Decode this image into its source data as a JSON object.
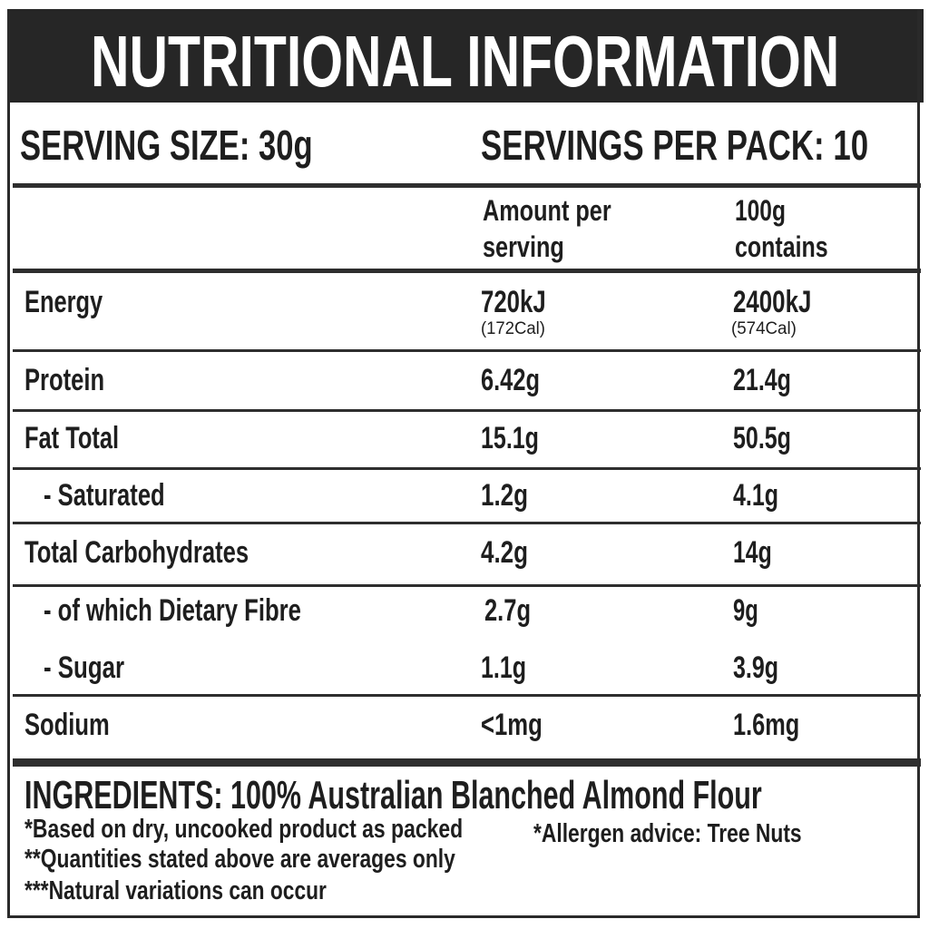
{
  "title": "NUTRITIONAL INFORMATION",
  "serving_size": "SERVING SIZE: 30g",
  "servings_per_pack": "SERVINGS PER PACK: 10",
  "columns": {
    "per_serving": [
      "Amount per",
      "serving"
    ],
    "per_100g": [
      "100g",
      "contains"
    ]
  },
  "rows": [
    {
      "label": "Energy",
      "serving": "720kJ",
      "serving_sub": "(172Cal)",
      "per100": "2400kJ",
      "per100_sub": "(574Cal)"
    },
    {
      "label": "Protein",
      "serving": "6.42g",
      "per100": "21.4g"
    },
    {
      "label": "Fat Total",
      "serving": "15.1g",
      "per100": "50.5g"
    },
    {
      "label": "- Saturated",
      "serving": "1.2g",
      "per100": "4.1g"
    },
    {
      "label": "Total Carbohydrates",
      "serving": "4.2g",
      "per100": "14g"
    },
    {
      "label": "- of which Dietary Fibre",
      "serving": "2.7g",
      "per100": "9g"
    },
    {
      "label": "- Sugar",
      "serving": "1.1g",
      "per100": "3.9g"
    },
    {
      "label": "Sodium",
      "serving": "<1mg",
      "per100": "1.6mg"
    }
  ],
  "ingredients": "INGREDIENTS: 100% Australian Blanched Almond Flour",
  "footnotes": [
    "*Based on dry, uncooked product as packed",
    "**Quantities stated above are averages only",
    "***Natural variations can occur"
  ],
  "allergen": "*Allergen advice: Tree Nuts"
}
